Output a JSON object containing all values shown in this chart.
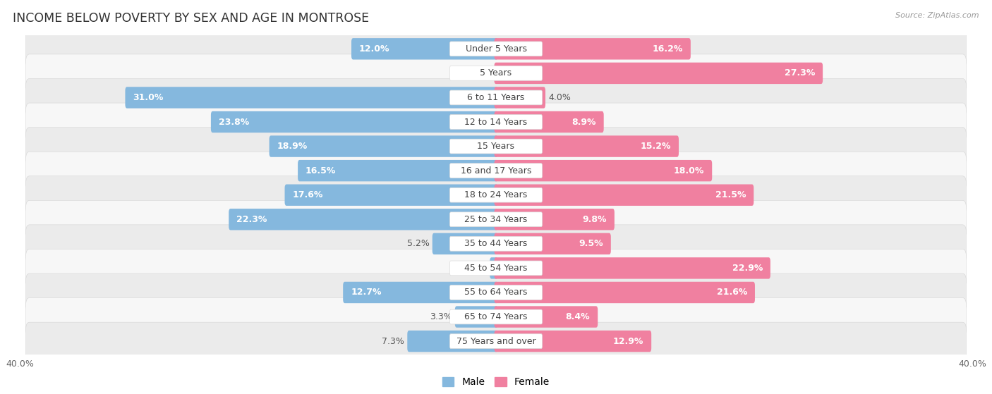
{
  "title": "INCOME BELOW POVERTY BY SEX AND AGE IN MONTROSE",
  "source": "Source: ZipAtlas.com",
  "categories": [
    "Under 5 Years",
    "5 Years",
    "6 to 11 Years",
    "12 to 14 Years",
    "15 Years",
    "16 and 17 Years",
    "18 to 24 Years",
    "25 to 34 Years",
    "35 to 44 Years",
    "45 to 54 Years",
    "55 to 64 Years",
    "65 to 74 Years",
    "75 Years and over"
  ],
  "male": [
    12.0,
    0.0,
    31.0,
    23.8,
    18.9,
    16.5,
    17.6,
    22.3,
    5.2,
    0.37,
    12.7,
    3.3,
    7.3
  ],
  "female": [
    16.2,
    27.3,
    4.0,
    8.9,
    15.2,
    18.0,
    21.5,
    9.8,
    9.5,
    22.9,
    21.6,
    8.4,
    12.9
  ],
  "male_color": "#85b8de",
  "female_color": "#f080a0",
  "male_light_color": "#b8d8ef",
  "female_light_color": "#f8b0c0",
  "row_color_odd": "#ebebeb",
  "row_color_even": "#f7f7f7",
  "axis_limit": 40.0,
  "bar_height": 0.58,
  "title_fontsize": 12.5,
  "label_fontsize": 9,
  "tick_fontsize": 9,
  "category_fontsize": 9
}
